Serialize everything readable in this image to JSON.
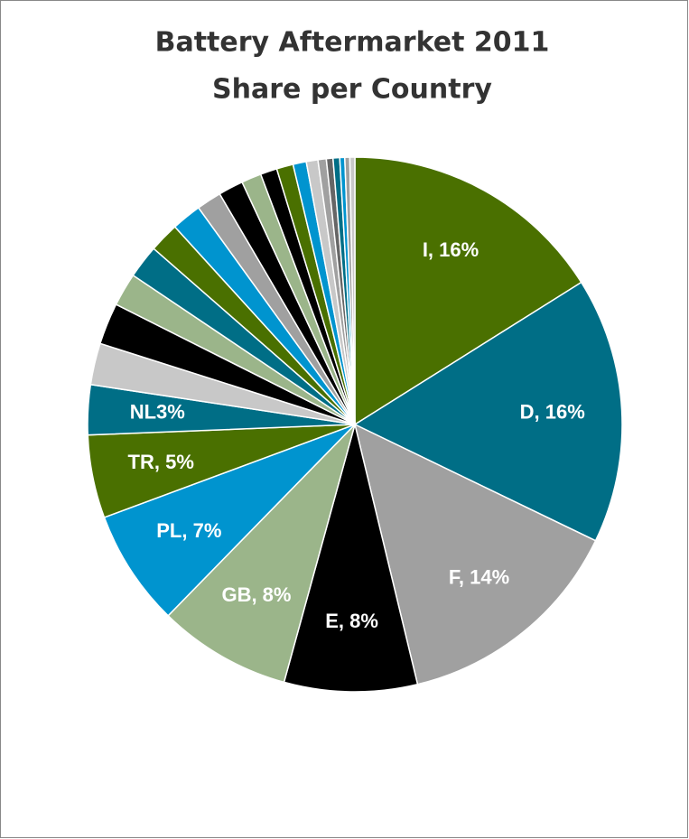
{
  "chart_data": {
    "type": "pie",
    "title": [
      "Battery Aftermarket 2011",
      "Share per Country"
    ],
    "values": [
      16,
      16,
      14,
      8,
      8,
      7,
      5,
      3,
      2.5,
      2.5,
      2,
      2,
      1.8,
      1.8,
      1.5,
      1.5,
      1.2,
      1,
      1,
      0.8,
      0.7,
      0.5,
      0.4,
      0.4,
      0.3,
      0.3,
      0.3
    ],
    "value_labels": [
      "I, 16%",
      "D, 16%",
      "F, 14%",
      "E, 8%",
      "GB, 8%",
      "PL, 7%",
      "TR, 5%",
      "NL3%",
      null,
      null,
      null,
      null,
      null,
      null,
      null,
      null,
      null,
      null,
      null,
      null,
      null,
      null,
      null,
      null,
      null,
      null,
      null
    ],
    "colors": [
      "#4a7000",
      "#006e86",
      "#a0a0a0",
      "#000000",
      "#9bb58a",
      "#0094cf",
      "#4a7000",
      "#006e86",
      "#c8c8c8",
      "#000000",
      "#9bb58a",
      "#006e86",
      "#4a7000",
      "#0094cf",
      "#a0a0a0",
      "#000000",
      "#9bb58a",
      "#000000",
      "#4a7000",
      "#0094cf",
      "#c8c8c8",
      "#a0a0a0",
      "#666666",
      "#006e86",
      "#0094cf",
      "#a0a0a0",
      "#c8c8c8"
    ]
  }
}
